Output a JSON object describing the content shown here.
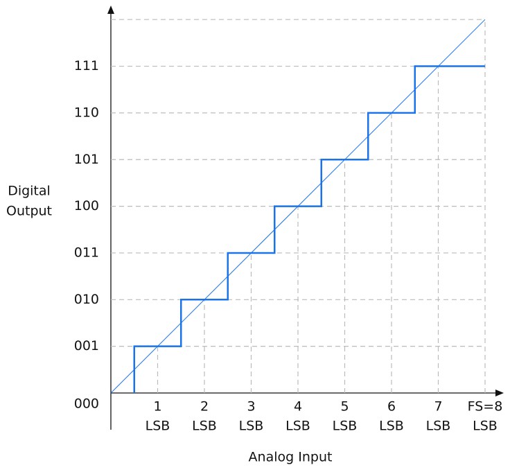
{
  "chart_data": {
    "type": "step",
    "x_label": "Analog Input",
    "y_label": [
      "Digital",
      "Output"
    ],
    "xlim": [
      0,
      8.4
    ],
    "ylim": [
      0,
      8.3
    ],
    "xticks": [
      {
        "value": 1,
        "label": "1"
      },
      {
        "value": 2,
        "label": "2"
      },
      {
        "value": 3,
        "label": "3"
      },
      {
        "value": 4,
        "label": "4"
      },
      {
        "value": 5,
        "label": "5"
      },
      {
        "value": 6,
        "label": "6"
      },
      {
        "value": 7,
        "label": "7"
      },
      {
        "value": 8,
        "label": "FS=8"
      }
    ],
    "xtick_unit": "LSB",
    "yticks": [
      {
        "value": 0,
        "label": "000"
      },
      {
        "value": 1,
        "label": "001"
      },
      {
        "value": 2,
        "label": "010"
      },
      {
        "value": 3,
        "label": "011"
      },
      {
        "value": 4,
        "label": "100"
      },
      {
        "value": 5,
        "label": "101"
      },
      {
        "value": 6,
        "label": "110"
      },
      {
        "value": 7,
        "label": "111"
      }
    ],
    "grid": true,
    "series": [
      {
        "color": "#1a73e8",
        "width": 2.5,
        "x": [
          0.5,
          0.5,
          1.5,
          1.5,
          2.5,
          2.5,
          3.5,
          3.5,
          4.5,
          4.5,
          5.5,
          5.5,
          6.5,
          6.5,
          8
        ],
        "values": [
          0,
          1,
          1,
          2,
          2,
          3,
          3,
          4,
          4,
          5,
          5,
          6,
          6,
          7,
          7
        ]
      },
      {
        "color": "#1a73e8",
        "width": 1,
        "x": [
          0,
          8
        ],
        "values": [
          0,
          8
        ]
      }
    ]
  }
}
